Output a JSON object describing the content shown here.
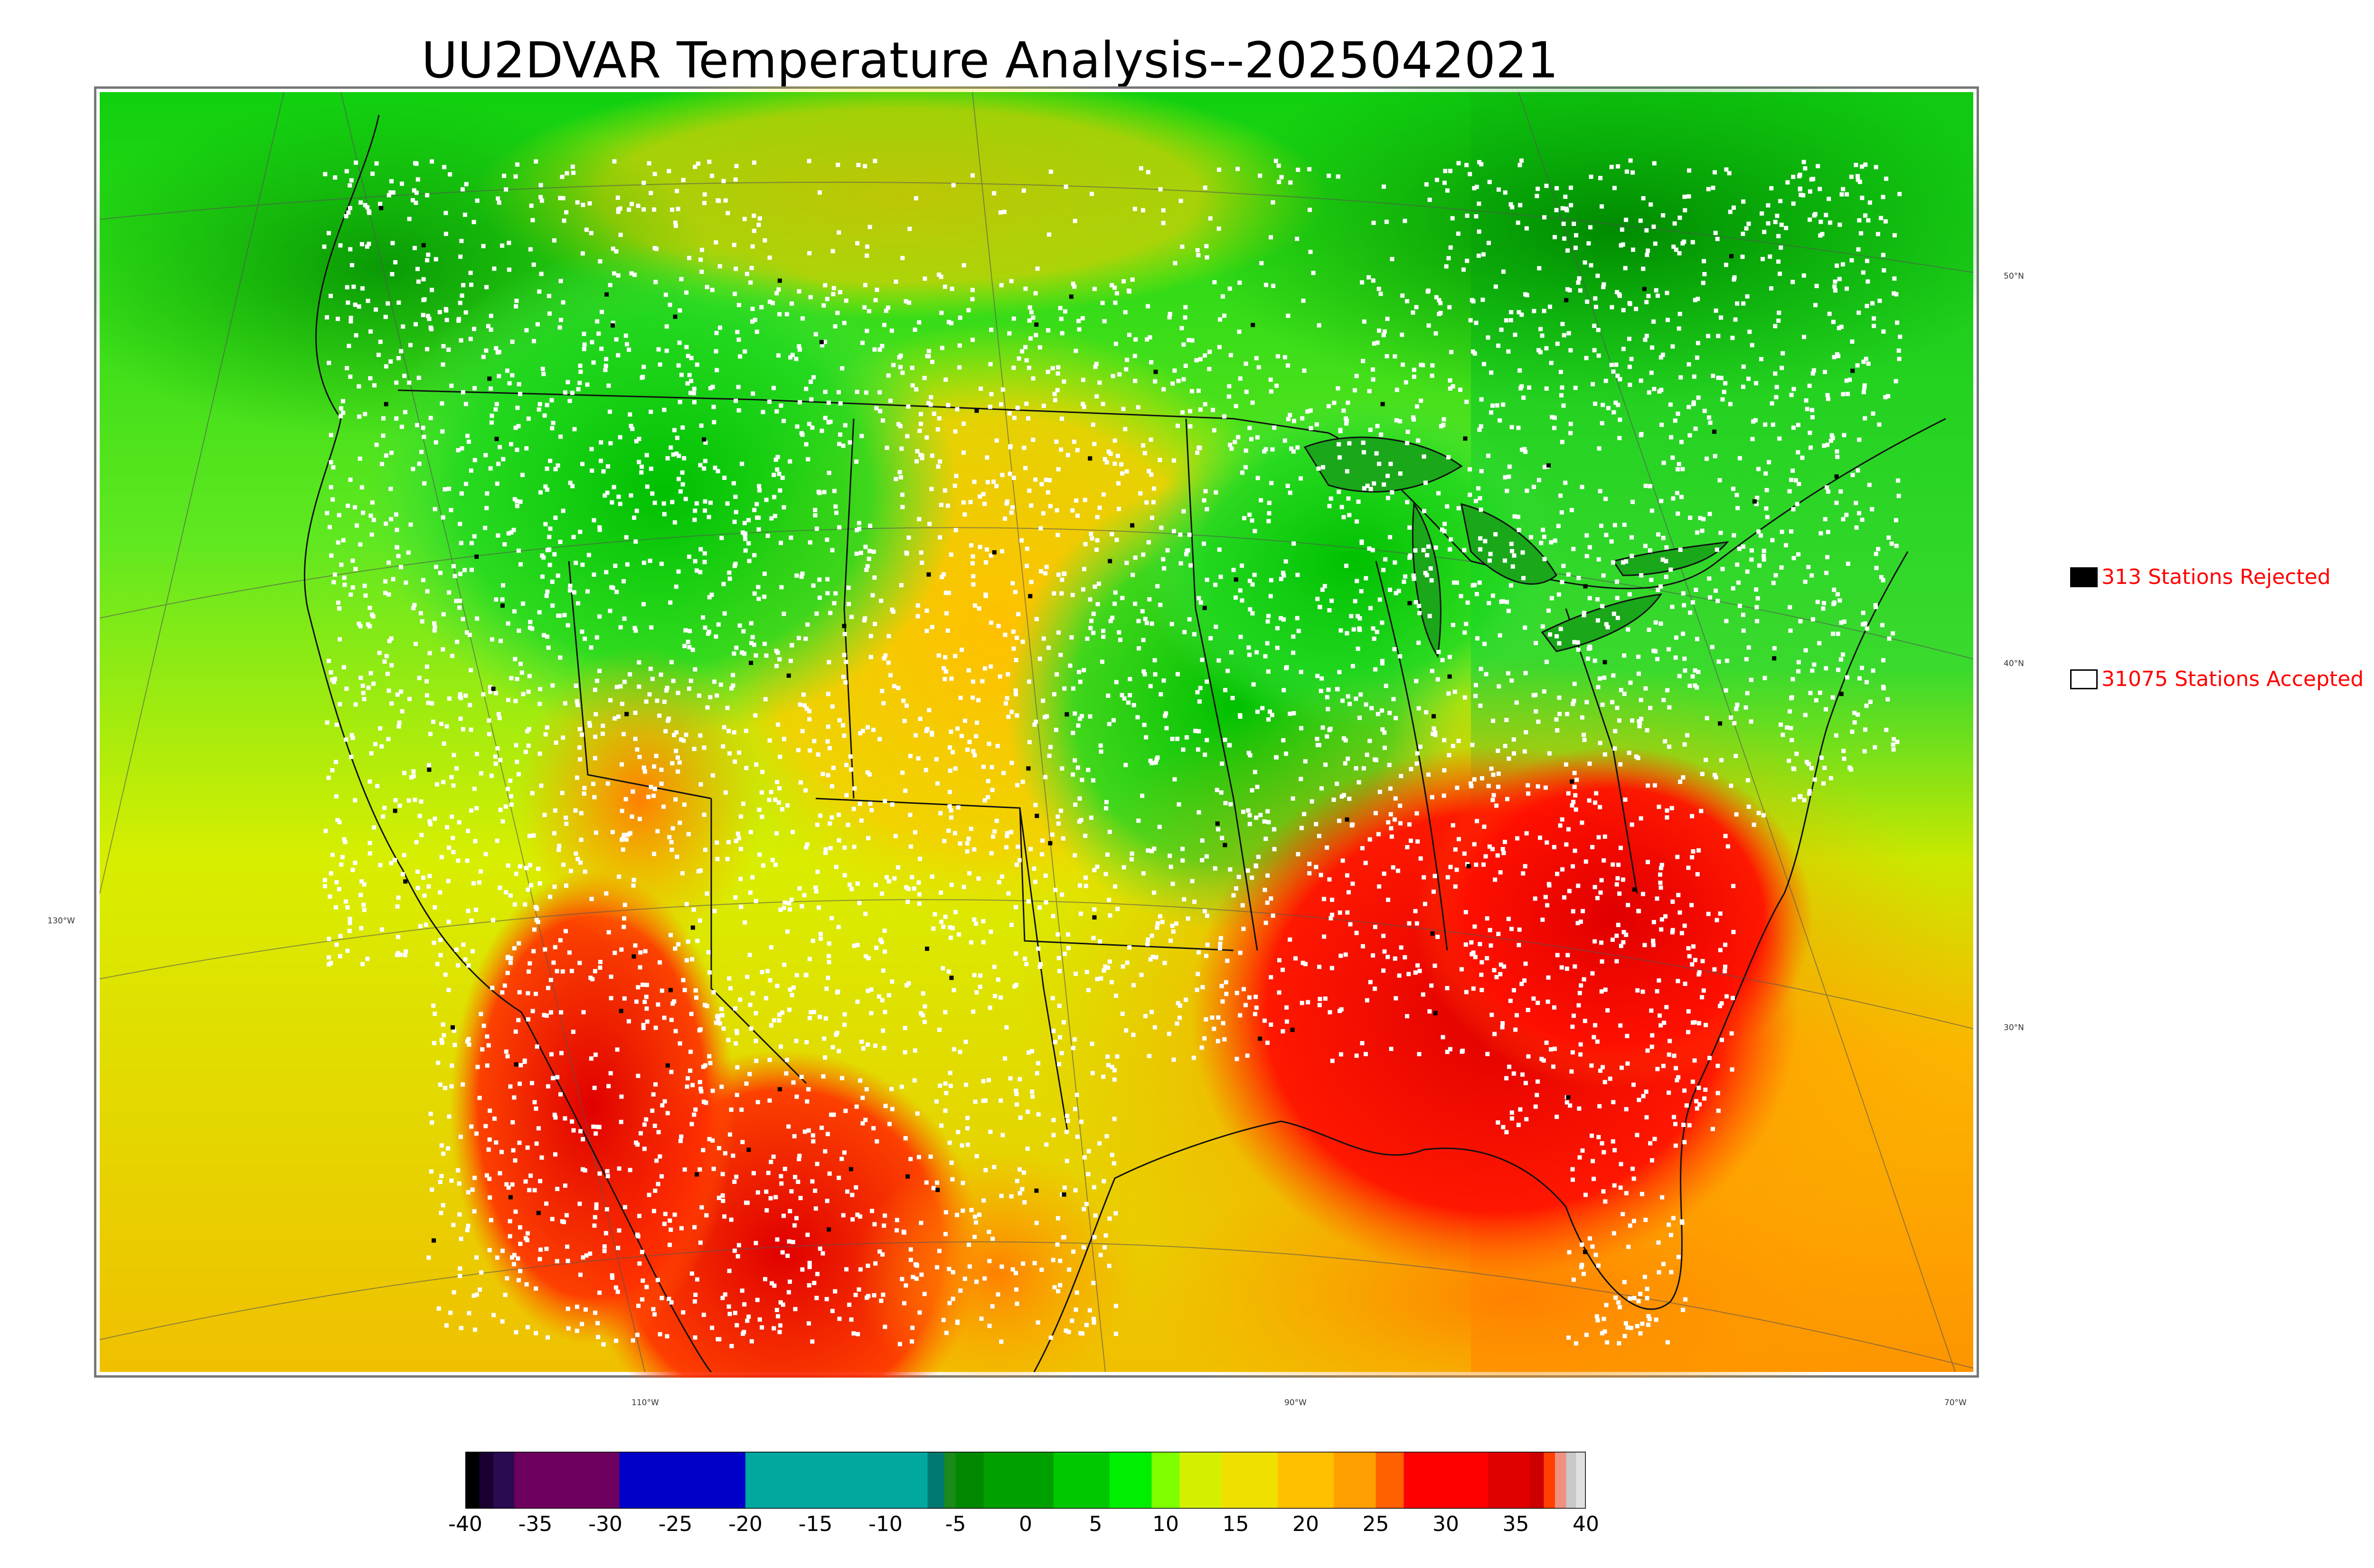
{
  "title": "UU2DVAR Temperature Analysis--2025042021",
  "map": {
    "region": "CONUS",
    "latitude_labels": [
      "50°N",
      "40°N",
      "30°N"
    ],
    "longitude_labels": [
      "130°W",
      "110°W",
      "90°W",
      "70°W"
    ],
    "field_colors": {
      "north_green": "#22b322",
      "plains_yellow": "#f5c800",
      "southeast_red": "#e50000",
      "gulf_orange": "#ff8c00",
      "pacific_yellowgreen": "#c8e600"
    },
    "station_marker_colors": {
      "accepted": "#ffffff",
      "rejected": "#000000"
    }
  },
  "legend": {
    "rejected": {
      "label": "313 Stations Rejected",
      "swatch_color": "#000000"
    },
    "accepted": {
      "label": "31075 Stations Accepted",
      "swatch_color": "#ffffff"
    }
  },
  "colorbar": {
    "ticks": [
      "-40",
      "-35",
      "-30",
      "-25",
      "-20",
      "-15",
      "-10",
      "-5",
      "0",
      "5",
      "10",
      "15",
      "20",
      "25",
      "30",
      "35",
      "40"
    ],
    "range": [
      -40,
      40
    ],
    "segments": [
      {
        "from": -40,
        "to": -39,
        "color": "#000000"
      },
      {
        "from": -39,
        "to": -38,
        "color": "#1a0030"
      },
      {
        "from": -38,
        "to": -36.5,
        "color": "#2a0a50"
      },
      {
        "from": -36.5,
        "to": -29,
        "color": "#6e0060"
      },
      {
        "from": -29,
        "to": -20,
        "color": "#0000c8"
      },
      {
        "from": -20,
        "to": -7,
        "color": "#00a8a0"
      },
      {
        "from": -7,
        "to": -5.8,
        "color": "#007a70"
      },
      {
        "from": -5.8,
        "to": -5,
        "color": "#1a8a1a"
      },
      {
        "from": -5,
        "to": -3,
        "color": "#008800"
      },
      {
        "from": -3,
        "to": 2,
        "color": "#00a000"
      },
      {
        "from": 2,
        "to": 6,
        "color": "#00c800"
      },
      {
        "from": 6,
        "to": 9,
        "color": "#00ee00"
      },
      {
        "from": 9,
        "to": 11,
        "color": "#7fff00"
      },
      {
        "from": 11,
        "to": 14,
        "color": "#d4f000"
      },
      {
        "from": 14,
        "to": 18,
        "color": "#f0e000"
      },
      {
        "from": 18,
        "to": 22,
        "color": "#ffc000"
      },
      {
        "from": 22,
        "to": 25,
        "color": "#ffa000"
      },
      {
        "from": 25,
        "to": 27,
        "color": "#ff6000"
      },
      {
        "from": 27,
        "to": 33,
        "color": "#ff0000"
      },
      {
        "from": 33,
        "to": 36,
        "color": "#e00000"
      },
      {
        "from": 36,
        "to": 37,
        "color": "#cc0000"
      },
      {
        "from": 37,
        "to": 37.8,
        "color": "#ff4000"
      },
      {
        "from": 37.8,
        "to": 38.6,
        "color": "#f09080"
      },
      {
        "from": 38.6,
        "to": 39.3,
        "color": "#c8c8c8"
      },
      {
        "from": 39.3,
        "to": 40,
        "color": "#e0e0e0"
      }
    ]
  }
}
